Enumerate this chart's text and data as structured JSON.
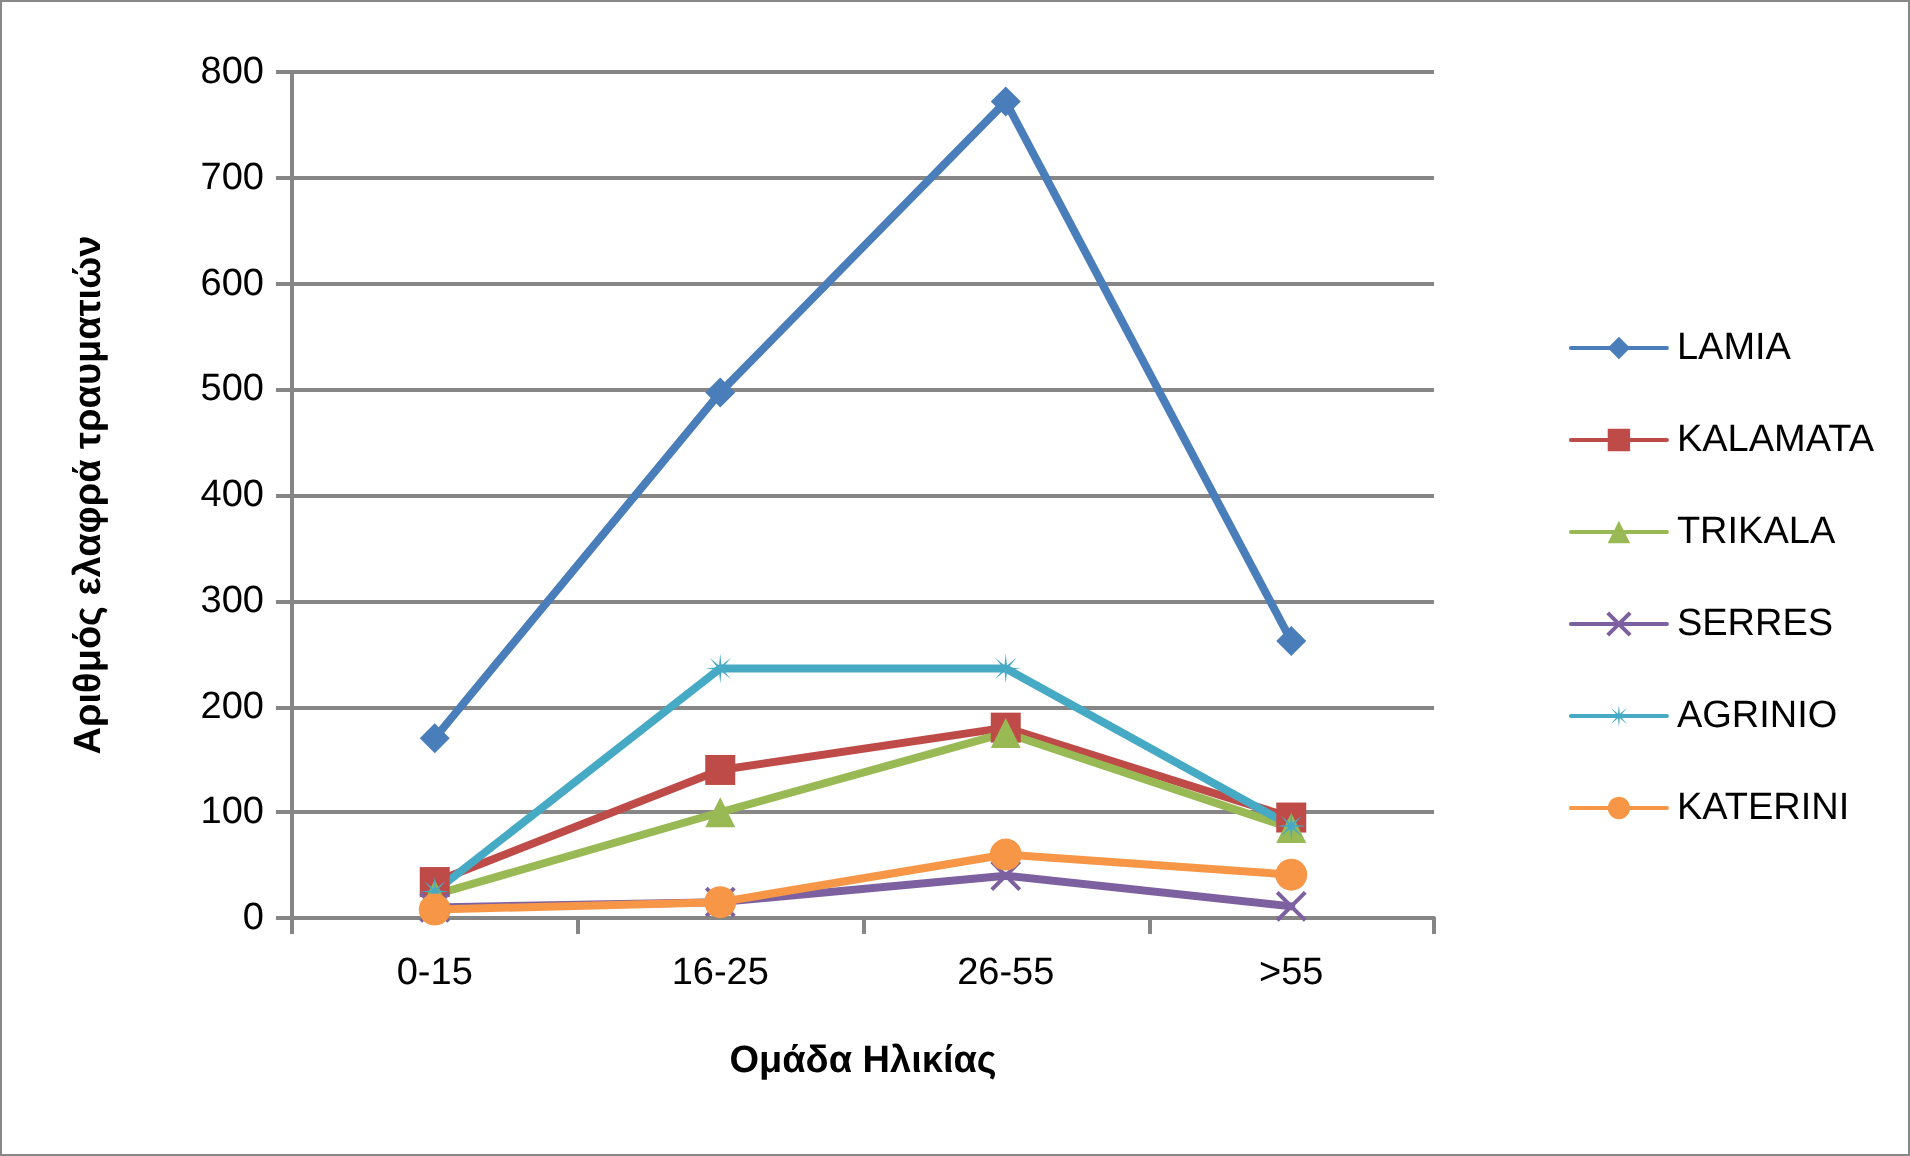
{
  "chart_data": {
    "type": "line",
    "xlabel": "Ομάδα Ηλικίας",
    "ylabel": "Αριθμός ελαφρά τραυματιών",
    "categories": [
      "0-15",
      "16-25",
      "26-55",
      ">55"
    ],
    "series": [
      {
        "name": "LAMIA",
        "color": "#4a7ebb",
        "marker": "diamond",
        "values": [
          170,
          497,
          772,
          262
        ]
      },
      {
        "name": "KALAMATA",
        "color": "#be4b48",
        "marker": "square",
        "values": [
          34,
          140,
          180,
          95
        ]
      },
      {
        "name": "TRIKALA",
        "color": "#98b954",
        "marker": "triangle",
        "values": [
          22,
          100,
          175,
          85
        ]
      },
      {
        "name": "SERRES",
        "color": "#7d60a0",
        "marker": "cross",
        "values": [
          10,
          15,
          40,
          11
        ]
      },
      {
        "name": "AGRINIO",
        "color": "#46aac5",
        "marker": "star",
        "values": [
          25,
          236,
          236,
          87
        ]
      },
      {
        "name": "KATERINI",
        "color": "#f79646",
        "marker": "circle",
        "values": [
          8,
          15,
          60,
          41
        ]
      }
    ],
    "ylim": [
      0,
      800
    ],
    "yticks": [
      0,
      100,
      200,
      300,
      400,
      500,
      600,
      700,
      800
    ],
    "grid": "y",
    "legend": "right",
    "line_style": "solid"
  }
}
